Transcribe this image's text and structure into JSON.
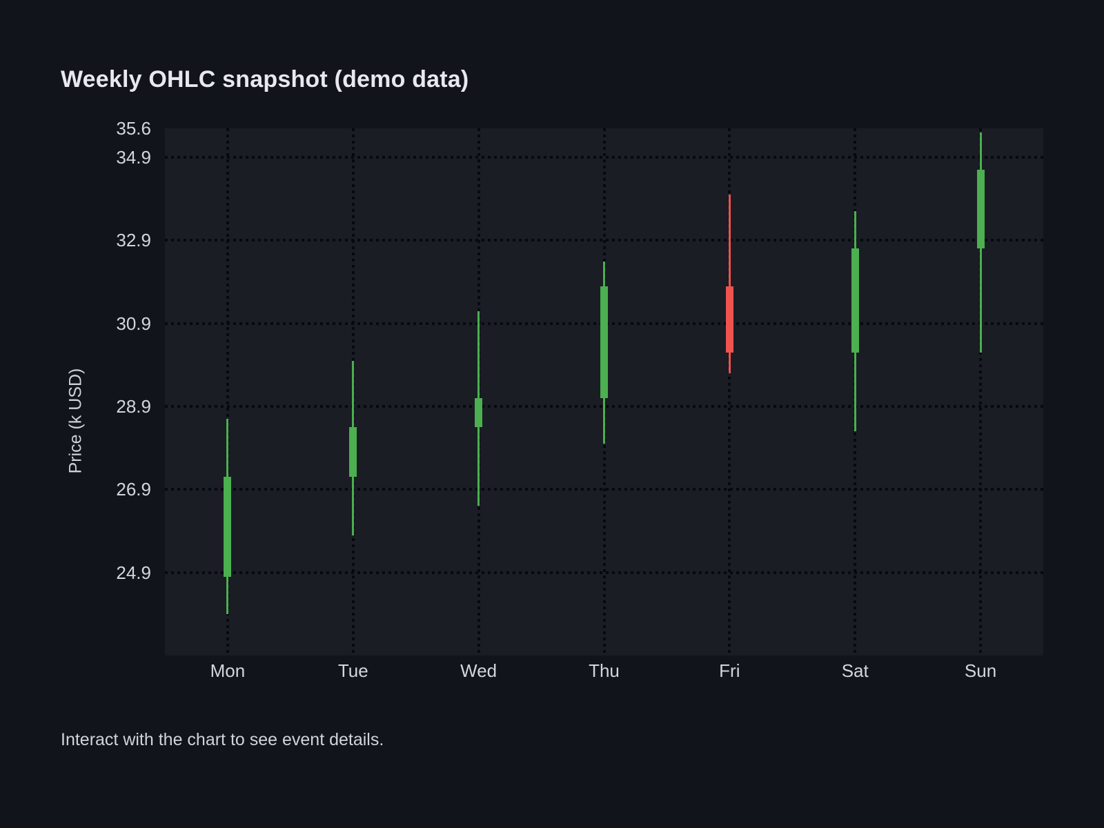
{
  "page": {
    "title": "Weekly OHLC snapshot (demo data)",
    "caption": "Interact with the chart to see event details.",
    "background_color": "#12141b",
    "plot_background_color": "#1a1d24"
  },
  "chart_data": {
    "type": "candlestick",
    "title": "Weekly OHLC snapshot (demo data)",
    "xlabel": "",
    "ylabel": "Price (k USD)",
    "categories": [
      "Mon",
      "Tue",
      "Wed",
      "Thu",
      "Fri",
      "Sat",
      "Sun"
    ],
    "series": [
      {
        "name": "Weekly OHLC",
        "ohlc": [
          {
            "day": "Mon",
            "open": 24.8,
            "high": 28.6,
            "low": 23.9,
            "close": 27.2,
            "direction": "up"
          },
          {
            "day": "Tue",
            "open": 27.2,
            "high": 30.0,
            "low": 25.8,
            "close": 28.4,
            "direction": "up"
          },
          {
            "day": "Wed",
            "open": 28.4,
            "high": 31.2,
            "low": 26.5,
            "close": 29.1,
            "direction": "up"
          },
          {
            "day": "Thu",
            "open": 29.1,
            "high": 32.4,
            "low": 28.0,
            "close": 31.8,
            "direction": "up"
          },
          {
            "day": "Fri",
            "open": 31.8,
            "high": 34.0,
            "low": 29.7,
            "close": 30.2,
            "direction": "down"
          },
          {
            "day": "Sat",
            "open": 30.2,
            "high": 33.6,
            "low": 28.3,
            "close": 32.7,
            "direction": "up"
          },
          {
            "day": "Sun",
            "open": 32.7,
            "high": 35.5,
            "low": 30.2,
            "close": 34.6,
            "direction": "up"
          }
        ]
      }
    ],
    "ylim": [
      22.9,
      35.6
    ],
    "ytick_labels": [
      "24.9",
      "26.9",
      "28.9",
      "30.9",
      "32.9",
      "34.9",
      "35.6"
    ],
    "ytick_values": [
      24.9,
      26.9,
      28.9,
      30.9,
      32.9,
      34.9,
      35.6
    ],
    "ygrid_values": [
      24.9,
      26.9,
      28.9,
      30.9,
      32.9,
      34.9
    ],
    "grid": true,
    "grid_style": "dotted",
    "legend_position": "none",
    "up_color": "#4caf50",
    "down_color": "#ef5350"
  }
}
